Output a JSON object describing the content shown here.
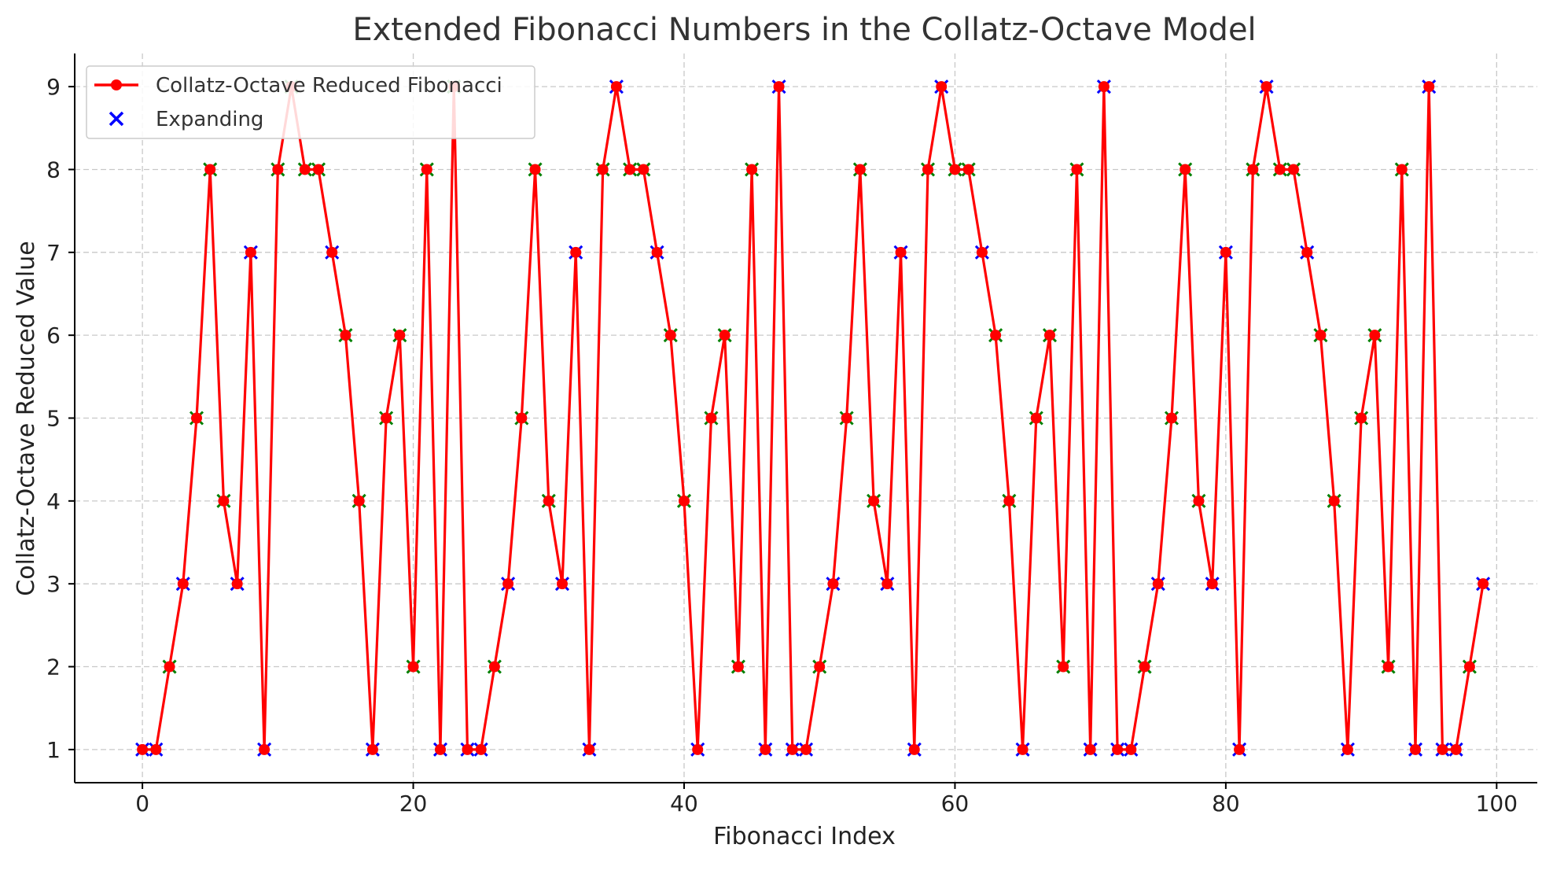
{
  "chart_data": {
    "type": "line",
    "title": "Extended Fibonacci Numbers in the Collatz-Octave Model",
    "xlabel": "Fibonacci Index",
    "ylabel": "Collatz-Octave Reduced Value",
    "xlim": [
      -5,
      103
    ],
    "ylim": [
      0.6,
      9.4
    ],
    "xticks": [
      0,
      20,
      40,
      60,
      80,
      100
    ],
    "yticks": [
      1,
      2,
      3,
      4,
      5,
      6,
      7,
      8,
      9
    ],
    "grid": true,
    "legend_position": "top-left",
    "x": [
      0,
      1,
      2,
      3,
      4,
      5,
      6,
      7,
      8,
      9,
      10,
      11,
      12,
      13,
      14,
      15,
      16,
      17,
      18,
      19,
      20,
      21,
      22,
      23,
      24,
      25,
      26,
      27,
      28,
      29,
      30,
      31,
      32,
      33,
      34,
      35,
      36,
      37,
      38,
      39,
      40,
      41,
      42,
      43,
      44,
      45,
      46,
      47,
      48,
      49,
      50,
      51,
      52,
      53,
      54,
      55,
      56,
      57,
      58,
      59,
      60,
      61,
      62,
      63,
      64,
      65,
      66,
      67,
      68,
      69,
      70,
      71,
      72,
      73,
      74,
      75,
      76,
      77,
      78,
      79,
      80,
      81,
      82,
      83,
      84,
      85,
      86,
      87,
      88,
      89,
      90,
      91,
      92,
      93,
      94,
      95,
      96,
      97,
      98,
      99
    ],
    "series": [
      {
        "name": "Collatz-Octave Reduced Fibonacci",
        "color": "#ff0000",
        "marker": "circle",
        "values": [
          1,
          1,
          2,
          3,
          5,
          8,
          4,
          3,
          7,
          1,
          8,
          9,
          8,
          8,
          7,
          6,
          4,
          1,
          5,
          6,
          2,
          8,
          1,
          9,
          1,
          1,
          2,
          3,
          5,
          8,
          4,
          3,
          7,
          1,
          8,
          9,
          8,
          8,
          7,
          6,
          4,
          1,
          5,
          6,
          2,
          8,
          1,
          9,
          1,
          1,
          2,
          3,
          5,
          8,
          4,
          3,
          7,
          1,
          8,
          9,
          8,
          8,
          7,
          6,
          4,
          1,
          5,
          6,
          2,
          8,
          1,
          9,
          1,
          1,
          2,
          3,
          5,
          8,
          4,
          3,
          7,
          1,
          8,
          9,
          8,
          8,
          7,
          6,
          4,
          1,
          5,
          6,
          2,
          8,
          1,
          9,
          1,
          1,
          2,
          3
        ]
      }
    ],
    "expanding": {
      "name": "Expanding",
      "color": "#0000ff",
      "marker": "x",
      "indices": [
        0,
        1,
        3,
        7,
        8,
        9,
        14,
        17,
        22,
        24,
        25,
        27,
        31,
        32,
        33,
        35,
        38,
        41,
        46,
        47,
        48,
        49,
        51,
        55,
        56,
        57,
        59,
        62,
        65,
        70,
        71,
        72,
        73,
        75,
        79,
        80,
        81,
        83,
        86,
        89,
        94,
        95,
        96,
        97,
        99
      ]
    },
    "contracting": {
      "color": "#008000",
      "marker": "x"
    }
  }
}
